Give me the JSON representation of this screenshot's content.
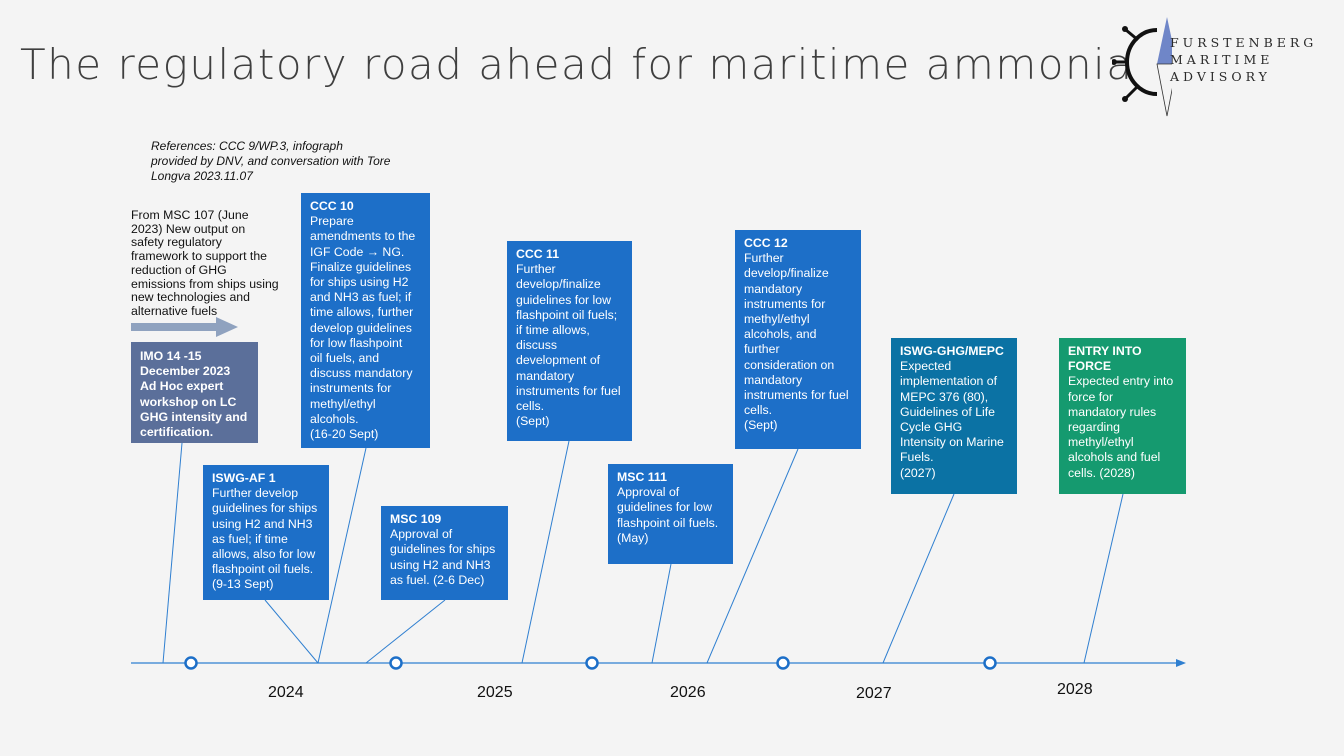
{
  "title": "The regulatory road ahead for maritime ammonia",
  "logo": {
    "lines": [
      "FURSTENBERG",
      "MARITIME",
      "ADVISORY"
    ]
  },
  "references": "References: CCC 9/WP.3, infograph provided by DNV, and conversation with Tore Longva 2023.11.07",
  "intro": "From MSC 107 (June 2023) New output on safety regulatory framework to support the reduction of GHG emissions from ships using new technologies and alternative fuels",
  "colors": {
    "imo": "#5b6f9a",
    "blue": "#1d6fc8",
    "teal": "#0b72a4",
    "green": "#159a6f",
    "timeline": "#2f7fd0"
  },
  "boxes": {
    "imo": {
      "body": "IMO 14 -15 December 2023 Ad Hoc expert workshop on LC GHG intensity and certification."
    },
    "ccc10": {
      "heading": "CCC 10",
      "body": "Prepare\namendments to the\nIGF Code → NG.\nFinalize guidelines\nfor ships using H2\nand NH3 as fuel; if\ntime allows, further\ndevelop guidelines\nfor low flashpoint\noil fuels, and\ndiscuss mandatory\ninstruments for\nmethyl/ethyl\nalcohols.\n(16-20 Sept)"
    },
    "iswg_af1": {
      "heading": "ISWG-AF 1",
      "body": "Further develop\nguidelines for ships\nusing H2 and NH3\nas fuel; if time\nallows, also for low\nflashpoint oil fuels.\n(9-13 Sept)"
    },
    "msc109": {
      "heading": "MSC 109",
      "body": "Approval of\nguidelines for ships\nusing H2 and NH3\nas fuel. (2-6 Dec)"
    },
    "ccc11": {
      "heading": "CCC 11",
      "body": "Further\ndevelop/finalize\nguidelines for low\nflashpoint oil fuels;\nif time allows,\ndiscuss\ndevelopment of\nmandatory\ninstruments for fuel\ncells.\n(Sept)"
    },
    "msc111": {
      "heading": "MSC 111",
      "body": "Approval of\nguidelines for low\nflashpoint oil fuels.\n(May)"
    },
    "ccc12": {
      "heading": "CCC 12",
      "body": "Further\ndevelop/finalize\nmandatory\ninstruments for\nmethyl/ethyl\nalcohols, and\nfurther\nconsideration on\nmandatory\ninstruments for fuel\ncells.\n(Sept)"
    },
    "iswg_ghg": {
      "heading": "ISWG-GHG/MEPC",
      "body": "Expected\nimplementation of\nMEPC 376 (80),\nGuidelines of Life\nCycle GHG\nIntensity on Marine\nFuels.\n(2027)"
    },
    "entry": {
      "heading": "ENTRY INTO\nFORCE",
      "body": "Expected entry into\nforce for\nmandatory rules\nregarding\nmethyl/ethyl\nalcohols and fuel\ncells. (2028)"
    }
  },
  "years": [
    "2024",
    "2025",
    "2026",
    "2027",
    "2028"
  ]
}
